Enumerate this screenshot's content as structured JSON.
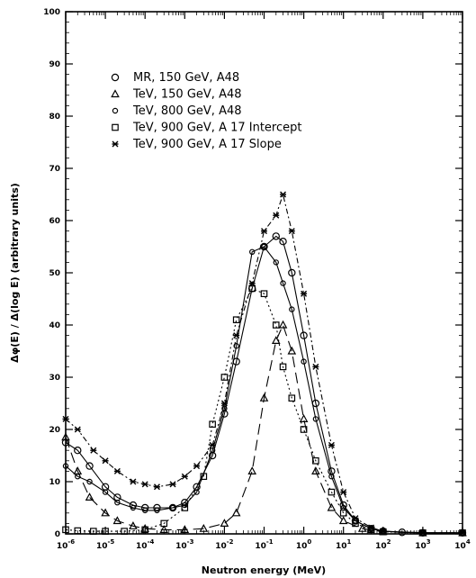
{
  "chart_data": {
    "type": "line",
    "title": "",
    "xlabel": "Neutron energy (MeV)",
    "ylabel": "Δφ(E) / Δ(log E)  (arbitrary units)",
    "xscale": "log",
    "xlim": [
      1e-06,
      10000
    ],
    "ylim": [
      0,
      100
    ],
    "x_ticks": [
      1e-06,
      1e-05,
      0.0001,
      0.001,
      0.01,
      0.1,
      1,
      10,
      100,
      1000,
      10000
    ],
    "x_tick_labels": [
      {
        "base": "10",
        "exp": "-6"
      },
      {
        "base": "10",
        "exp": "-5"
      },
      {
        "base": "10",
        "exp": "-4"
      },
      {
        "base": "10",
        "exp": "-3"
      },
      {
        "base": "10",
        "exp": "-2"
      },
      {
        "base": "10",
        "exp": "-1"
      },
      {
        "base": "10",
        "exp": "0"
      },
      {
        "base": "10",
        "exp": "1"
      },
      {
        "base": "10",
        "exp": "2"
      },
      {
        "base": "10",
        "exp": "3"
      },
      {
        "base": "10",
        "exp": "4"
      }
    ],
    "y_ticks": [
      0,
      10,
      20,
      30,
      40,
      50,
      60,
      70,
      80,
      90,
      100
    ],
    "y_tick_labels": [
      "0",
      "10",
      "20",
      "30",
      "40",
      "50",
      "60",
      "70",
      "80",
      "90",
      "100"
    ],
    "grid": false,
    "legend_position": "top-left",
    "series": [
      {
        "name": "MR,   150 GeV, A48",
        "marker": "circle-large",
        "line": "solid",
        "points": [
          [
            1e-06,
            17.5
          ],
          [
            2e-06,
            16
          ],
          [
            4e-06,
            13
          ],
          [
            1e-05,
            9
          ],
          [
            2e-05,
            7
          ],
          [
            5e-05,
            5.5
          ],
          [
            0.0001,
            5
          ],
          [
            0.0002,
            5
          ],
          [
            0.0005,
            5
          ],
          [
            0.001,
            6
          ],
          [
            0.002,
            9
          ],
          [
            0.005,
            15
          ],
          [
            0.01,
            23
          ],
          [
            0.02,
            33
          ],
          [
            0.05,
            47
          ],
          [
            0.1,
            55
          ],
          [
            0.2,
            57
          ],
          [
            0.3,
            56
          ],
          [
            0.5,
            50
          ],
          [
            1,
            38
          ],
          [
            2,
            25
          ],
          [
            5,
            12
          ],
          [
            10,
            5.5
          ],
          [
            20,
            2.5
          ],
          [
            50,
            1
          ],
          [
            100,
            0.5
          ],
          [
            300,
            0.3
          ],
          [
            1000,
            0.2
          ],
          [
            10000,
            0.2
          ]
        ]
      },
      {
        "name": "TeV,  150 GeV, A48",
        "marker": "triangle",
        "line": "long-dash",
        "points": [
          [
            1e-06,
            18.5
          ],
          [
            2e-06,
            12
          ],
          [
            4e-06,
            7
          ],
          [
            1e-05,
            4
          ],
          [
            2e-05,
            2.5
          ],
          [
            5e-05,
            1.5
          ],
          [
            0.0001,
            1
          ],
          [
            0.0003,
            0.8
          ],
          [
            0.001,
            0.8
          ],
          [
            0.003,
            1
          ],
          [
            0.01,
            2
          ],
          [
            0.02,
            4
          ],
          [
            0.05,
            12
          ],
          [
            0.1,
            26
          ],
          [
            0.2,
            37
          ],
          [
            0.3,
            40
          ],
          [
            0.5,
            35
          ],
          [
            1,
            22
          ],
          [
            2,
            12
          ],
          [
            5,
            5
          ],
          [
            10,
            2.5
          ],
          [
            30,
            1
          ],
          [
            100,
            0.4
          ],
          [
            1000,
            0.2
          ],
          [
            10000,
            0.2
          ]
        ]
      },
      {
        "name": "TeV,  800 GeV, A48",
        "marker": "circle-small",
        "line": "solid",
        "points": [
          [
            1e-06,
            13
          ],
          [
            2e-06,
            11
          ],
          [
            4e-06,
            10
          ],
          [
            1e-05,
            8
          ],
          [
            2e-05,
            6
          ],
          [
            5e-05,
            5
          ],
          [
            0.0001,
            4.5
          ],
          [
            0.0002,
            4.5
          ],
          [
            0.0005,
            5
          ],
          [
            0.001,
            5.5
          ],
          [
            0.002,
            8
          ],
          [
            0.005,
            16
          ],
          [
            0.01,
            24
          ],
          [
            0.02,
            36
          ],
          [
            0.05,
            54
          ],
          [
            0.1,
            55
          ],
          [
            0.2,
            52
          ],
          [
            0.3,
            48
          ],
          [
            0.5,
            43
          ],
          [
            1,
            33
          ],
          [
            2,
            22
          ],
          [
            5,
            11
          ],
          [
            10,
            5
          ],
          [
            20,
            2.5
          ],
          [
            50,
            1
          ],
          [
            100,
            0.5
          ],
          [
            1000,
            0.2
          ],
          [
            10000,
            0.2
          ]
        ]
      },
      {
        "name": "TeV,  900 GeV, A 17 Intercept",
        "marker": "square",
        "line": "dotted",
        "points": [
          [
            1e-06,
            0.8
          ],
          [
            2e-06,
            0.6
          ],
          [
            5e-06,
            0.5
          ],
          [
            1e-05,
            0.5
          ],
          [
            3e-05,
            0.5
          ],
          [
            0.0001,
            0.8
          ],
          [
            0.0003,
            2
          ],
          [
            0.001,
            5
          ],
          [
            0.003,
            11
          ],
          [
            0.005,
            21
          ],
          [
            0.01,
            30
          ],
          [
            0.02,
            41
          ],
          [
            0.05,
            47
          ],
          [
            0.1,
            46
          ],
          [
            0.2,
            40
          ],
          [
            0.3,
            32
          ],
          [
            0.5,
            26
          ],
          [
            1,
            20
          ],
          [
            2,
            14
          ],
          [
            5,
            8
          ],
          [
            10,
            4
          ],
          [
            20,
            2
          ],
          [
            50,
            0.8
          ],
          [
            100,
            0.4
          ],
          [
            1000,
            0.2
          ],
          [
            10000,
            0.2
          ]
        ]
      },
      {
        "name": "TeV,  900 GeV, A 17 Slope",
        "marker": "x-star",
        "line": "dash-dot",
        "points": [
          [
            1e-06,
            22
          ],
          [
            2e-06,
            20
          ],
          [
            5e-06,
            16
          ],
          [
            1e-05,
            14
          ],
          [
            2e-05,
            12
          ],
          [
            5e-05,
            10
          ],
          [
            0.0001,
            9.5
          ],
          [
            0.0002,
            9
          ],
          [
            0.0005,
            9.5
          ],
          [
            0.001,
            11
          ],
          [
            0.002,
            13
          ],
          [
            0.005,
            17
          ],
          [
            0.01,
            25
          ],
          [
            0.02,
            38
          ],
          [
            0.05,
            48
          ],
          [
            0.1,
            58
          ],
          [
            0.2,
            61
          ],
          [
            0.3,
            65
          ],
          [
            0.5,
            58
          ],
          [
            1,
            46
          ],
          [
            2,
            32
          ],
          [
            5,
            17
          ],
          [
            10,
            8
          ],
          [
            20,
            3
          ],
          [
            50,
            1.2
          ],
          [
            100,
            0.5
          ],
          [
            1000,
            0.2
          ],
          [
            10000,
            0.2
          ]
        ]
      }
    ]
  }
}
